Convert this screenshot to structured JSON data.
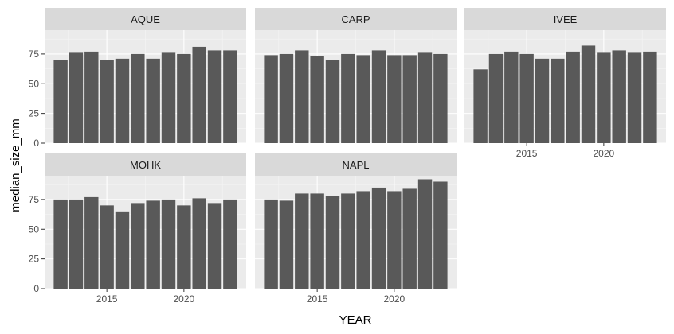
{
  "chart_data": {
    "type": "bar",
    "facet": "wrap",
    "xlabel": "YEAR",
    "ylabel": "median_size_mm",
    "ylim": [
      0,
      95
    ],
    "y_ticks": [
      0,
      25,
      50,
      75
    ],
    "x_ticks": [
      2015,
      2020
    ],
    "x": [
      2012,
      2013,
      2014,
      2015,
      2016,
      2017,
      2018,
      2019,
      2020,
      2021,
      2022,
      2023
    ],
    "bar_color": "#595959",
    "panel_background": "#ebebeb",
    "strip_background": "#d9d9d9",
    "grid": true,
    "panels": [
      {
        "name": "AQUE",
        "values": [
          70,
          76,
          77,
          70,
          71,
          75,
          71,
          76,
          75,
          81,
          78,
          78
        ]
      },
      {
        "name": "CARP",
        "values": [
          74,
          75,
          78,
          73,
          70,
          75,
          74,
          78,
          74,
          74,
          76,
          75
        ]
      },
      {
        "name": "IVEE",
        "values": [
          62,
          75,
          77,
          75,
          71,
          71,
          77,
          82,
          76,
          78,
          76,
          77
        ]
      },
      {
        "name": "MOHK",
        "values": [
          75,
          75,
          77,
          70,
          65,
          72,
          74,
          75,
          70,
          76,
          72,
          75
        ]
      },
      {
        "name": "NAPL",
        "values": [
          75,
          74,
          80,
          80,
          78,
          80,
          82,
          85,
          82,
          84,
          92,
          90
        ]
      }
    ]
  }
}
